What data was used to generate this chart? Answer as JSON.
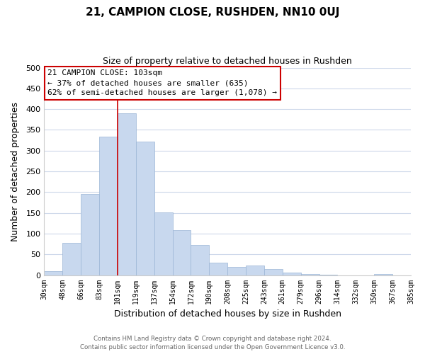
{
  "title_line1": "21, CAMPION CLOSE, RUSHDEN, NN10 0UJ",
  "title_line2": "Size of property relative to detached houses in Rushden",
  "xlabel": "Distribution of detached houses by size in Rushden",
  "ylabel": "Number of detached properties",
  "bin_labels": [
    "30sqm",
    "48sqm",
    "66sqm",
    "83sqm",
    "101sqm",
    "119sqm",
    "137sqm",
    "154sqm",
    "172sqm",
    "190sqm",
    "208sqm",
    "225sqm",
    "243sqm",
    "261sqm",
    "279sqm",
    "296sqm",
    "314sqm",
    "332sqm",
    "350sqm",
    "367sqm",
    "385sqm"
  ],
  "bar_values": [
    10,
    78,
    196,
    333,
    390,
    321,
    151,
    108,
    73,
    30,
    20,
    23,
    15,
    6,
    3,
    1,
    0,
    0,
    3,
    0
  ],
  "bar_color": "#c8d8ee",
  "bar_edge_color": "#9ab5d5",
  "vline_x": 4,
  "vline_color": "#cc0000",
  "ylim": [
    0,
    500
  ],
  "annotation_title": "21 CAMPION CLOSE: 103sqm",
  "annotation_line2": "← 37% of detached houses are smaller (635)",
  "annotation_line3": "62% of semi-detached houses are larger (1,078) →",
  "annotation_box_color": "#ffffff",
  "annotation_box_edge": "#cc0000",
  "footer_line1": "Contains HM Land Registry data © Crown copyright and database right 2024.",
  "footer_line2": "Contains public sector information licensed under the Open Government Licence v3.0.",
  "bg_color": "#ffffff",
  "grid_color": "#cdd8ea"
}
